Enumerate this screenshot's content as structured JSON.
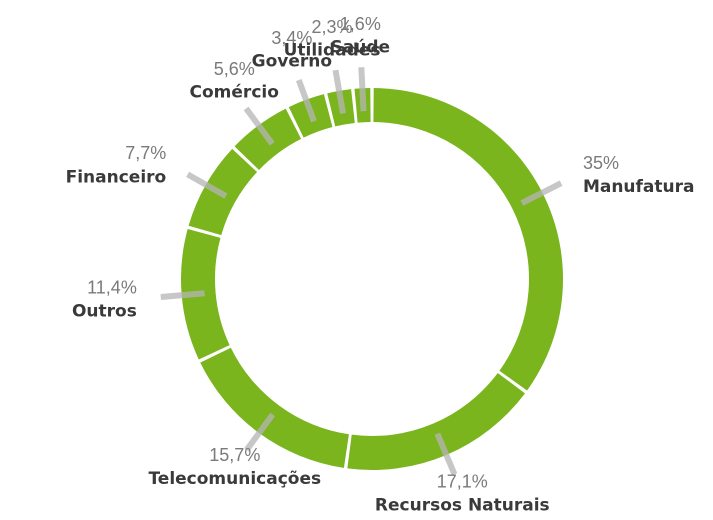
{
  "chart_data": {
    "type": "donut",
    "categories": [
      "Manufatura",
      "Recursos Naturais",
      "Telecomunicações",
      "Outros",
      "Financeiro",
      "Comércio",
      "Governo",
      "Utilidades",
      "Saúde"
    ],
    "values": [
      35,
      17.1,
      15.7,
      11.4,
      7.7,
      5.6,
      3.4,
      2.3,
      1.6
    ],
    "value_labels": [
      "35%",
      "17,1%",
      "15,7%",
      "11,4%",
      "7,7%",
      "5,6%",
      "3,4%",
      "2,3%",
      "1,6%"
    ],
    "color": "#7ab51d"
  }
}
